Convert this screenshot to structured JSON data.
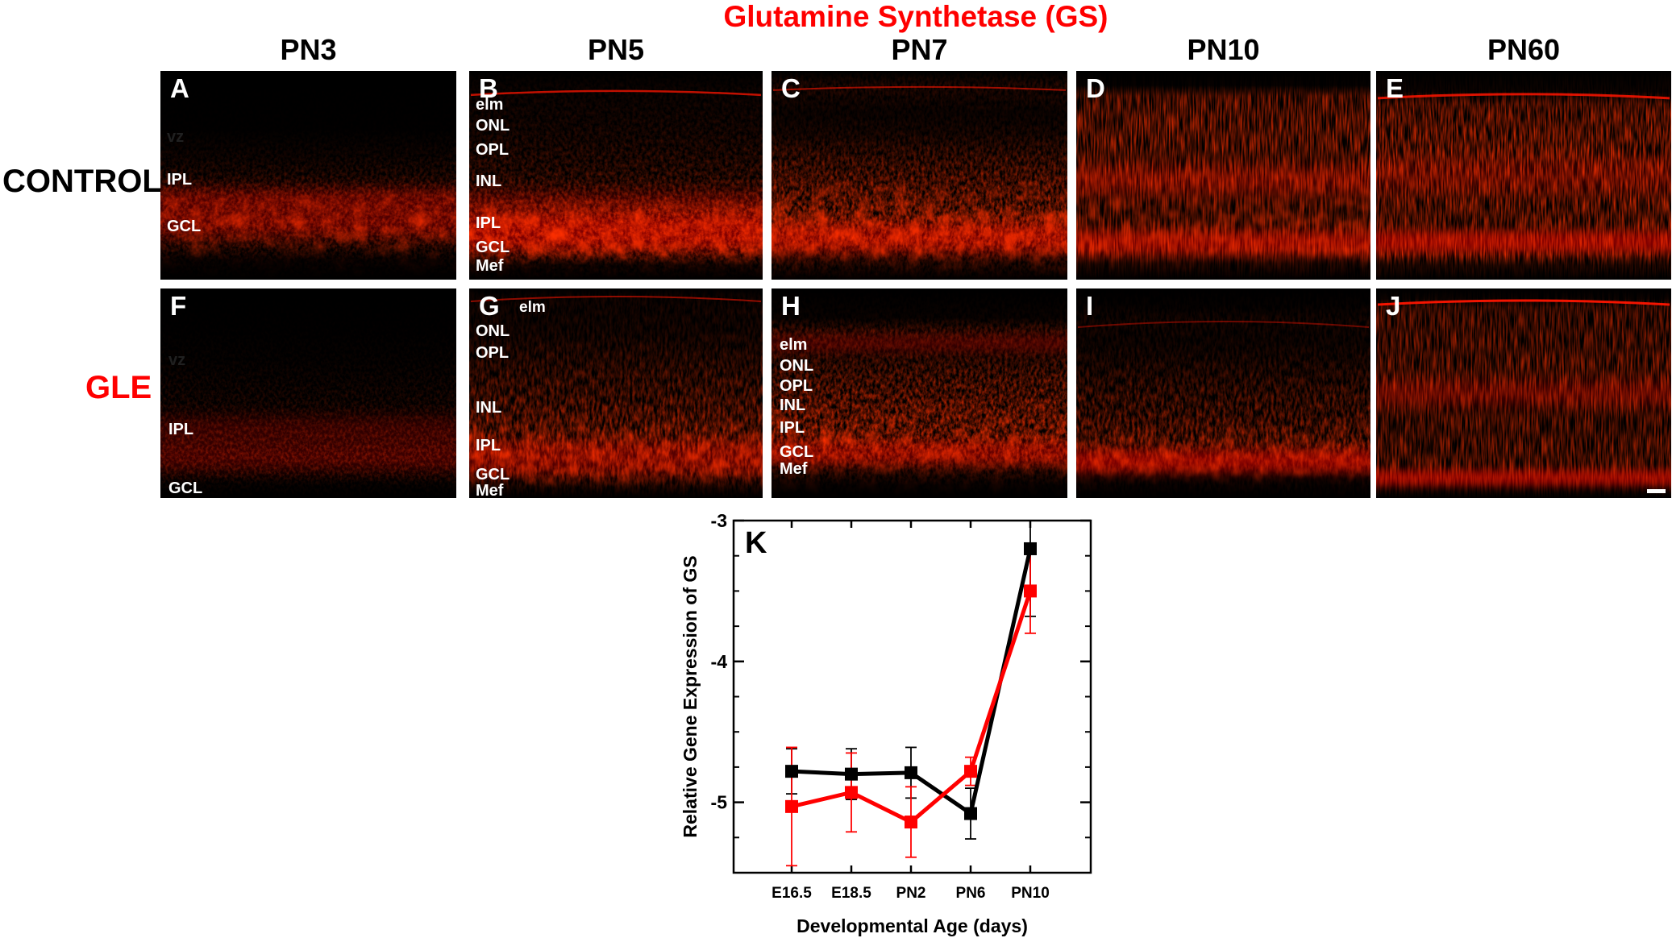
{
  "figure_title": "Glutamine Synthetase (GS)",
  "column_headers": [
    "PN3",
    "PN5",
    "PN7",
    "PN10",
    "PN60"
  ],
  "row_labels": {
    "top": "CONTROL",
    "bottom": "GLE"
  },
  "colors": {
    "accent_red": "#ff0000",
    "label_white": "#ffffff",
    "faint_label": "#202020",
    "panel_black": "#000000",
    "background": "#ffffff"
  },
  "panels": [
    {
      "letter": "A",
      "layers": [
        "vz",
        "IPL",
        "GCL"
      ]
    },
    {
      "letter": "B",
      "layers": [
        "elm",
        "ONL",
        "OPL",
        "INL",
        "IPL",
        "GCL",
        "Mef"
      ]
    },
    {
      "letter": "C",
      "layers": []
    },
    {
      "letter": "D",
      "layers": []
    },
    {
      "letter": "E",
      "layers": []
    },
    {
      "letter": "F",
      "layers": [
        "vz",
        "IPL",
        "GCL"
      ]
    },
    {
      "letter": "G",
      "layers": [
        "elm",
        "ONL",
        "OPL",
        "INL",
        "IPL",
        "GCL",
        "Mef"
      ]
    },
    {
      "letter": "H",
      "layers": [
        "elm",
        "ONL",
        "OPL",
        "INL",
        "IPL",
        "GCL",
        "Mef"
      ]
    },
    {
      "letter": "I",
      "layers": []
    },
    {
      "letter": "J",
      "layers": []
    }
  ],
  "chart_data": {
    "type": "line",
    "panel_letter": "K",
    "x_categories": [
      "E16.5",
      "E18.5",
      "PN2",
      "PN6",
      "PN10"
    ],
    "xlabel": "Developmental Age (days)",
    "ylabel": "Relative Gene Expression of GS",
    "ylim": [
      -5.5,
      -3
    ],
    "yticks": [
      -3,
      -4,
      -5
    ],
    "ytick_labels": [
      "-3",
      "-4",
      "-5"
    ],
    "minor_tick_step": 0.25,
    "grid": false,
    "legend": "none",
    "series": [
      {
        "name": "CONTROL",
        "color": "#000000",
        "values": [
          -4.78,
          -4.8,
          -4.79,
          -5.08,
          -3.2
        ],
        "errors": [
          0.16,
          0.18,
          0.18,
          0.18,
          0.48
        ]
      },
      {
        "name": "GLE",
        "color": "#ff0000",
        "values": [
          -5.03,
          -4.93,
          -5.14,
          -4.78,
          -3.5
        ],
        "errors": [
          0.42,
          0.28,
          0.25,
          0.1,
          0.3
        ]
      }
    ]
  }
}
